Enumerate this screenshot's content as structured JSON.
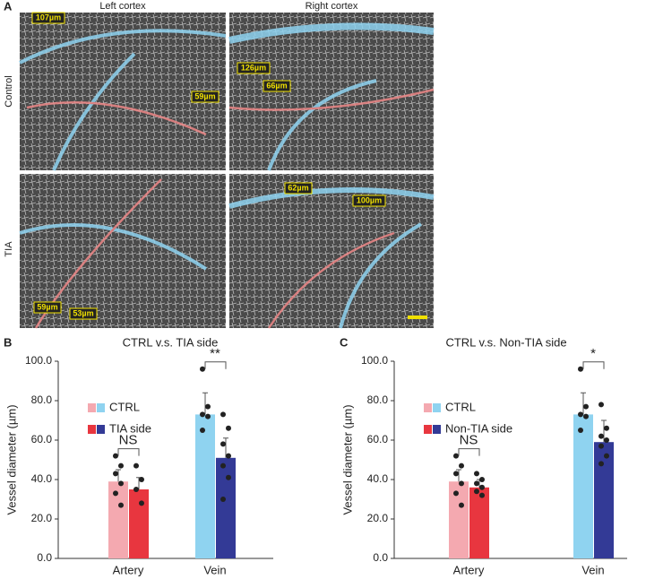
{
  "panel_a": {
    "label": "A",
    "columns": [
      "Left cortex",
      "Right cortex"
    ],
    "rows": [
      "Control",
      "TIA"
    ],
    "annotations": [
      "107µm",
      "59µm",
      "126µm",
      "66µm",
      "62µm",
      "100µm",
      "59µm",
      "53µm"
    ]
  },
  "chart_data": [
    {
      "type": "bar",
      "panel": "B",
      "title": "CTRL v.s. TIA side",
      "y_label": "Vessel diameter (µm)",
      "categories": [
        "Artery",
        "Vein"
      ],
      "series": [
        {
          "name": "CTRL",
          "colors": [
            "#f4a9b0",
            "#8fd3f0"
          ],
          "values": [
            39,
            73
          ],
          "errors": [
            6,
            11
          ],
          "points": [
            [
              52,
              47,
              43,
              38,
              33,
              27
            ],
            [
              96,
              77,
              73,
              72,
              65
            ]
          ]
        },
        {
          "name": "TIA side",
          "colors": [
            "#e8363f",
            "#333a96"
          ],
          "values": [
            35,
            51
          ],
          "errors": [
            6,
            10
          ],
          "points": [
            [
              47,
              40,
              35,
              28
            ],
            [
              73,
              66,
              58,
              52,
              47,
              41,
              30
            ]
          ]
        }
      ],
      "significance": [
        "NS",
        "**"
      ],
      "ylim": [
        0,
        100
      ],
      "yticks": [
        {
          "value": 0,
          "label": "0.0"
        },
        {
          "value": 20,
          "label": "20.0"
        },
        {
          "value": 40,
          "label": "40.0"
        },
        {
          "value": 60,
          "label": "60.0"
        },
        {
          "value": 80,
          "label": "80.0"
        },
        {
          "value": 100,
          "label": "100.0"
        }
      ]
    },
    {
      "type": "bar",
      "panel": "C",
      "title": "CTRL v.s. Non-TIA side",
      "y_label": "Vessel diameter (µm)",
      "categories": [
        "Artery",
        "Vein"
      ],
      "series": [
        {
          "name": "CTRL",
          "colors": [
            "#f4a9b0",
            "#8fd3f0"
          ],
          "values": [
            39,
            73
          ],
          "errors": [
            6,
            11
          ],
          "points": [
            [
              52,
              47,
              43,
              38,
              33,
              27
            ],
            [
              96,
              77,
              73,
              72,
              65
            ]
          ]
        },
        {
          "name": "Non-TIA side",
          "colors": [
            "#e8363f",
            "#333a96"
          ],
          "values": [
            36,
            59
          ],
          "errors": [
            4,
            11
          ],
          "points": [
            [
              43,
              40,
              38,
              36,
              34,
              32
            ],
            [
              78,
              66,
              62,
              60,
              57,
              52,
              48
            ]
          ]
        }
      ],
      "significance": [
        "NS",
        "*"
      ],
      "ylim": [
        0,
        100
      ],
      "yticks": [
        {
          "value": 0,
          "label": "0.0"
        },
        {
          "value": 20,
          "label": "20.0"
        },
        {
          "value": 40,
          "label": "40.0"
        },
        {
          "value": 60,
          "label": "60.0"
        },
        {
          "value": 80,
          "label": "80.0"
        },
        {
          "value": 100,
          "label": "100.0"
        }
      ]
    }
  ]
}
